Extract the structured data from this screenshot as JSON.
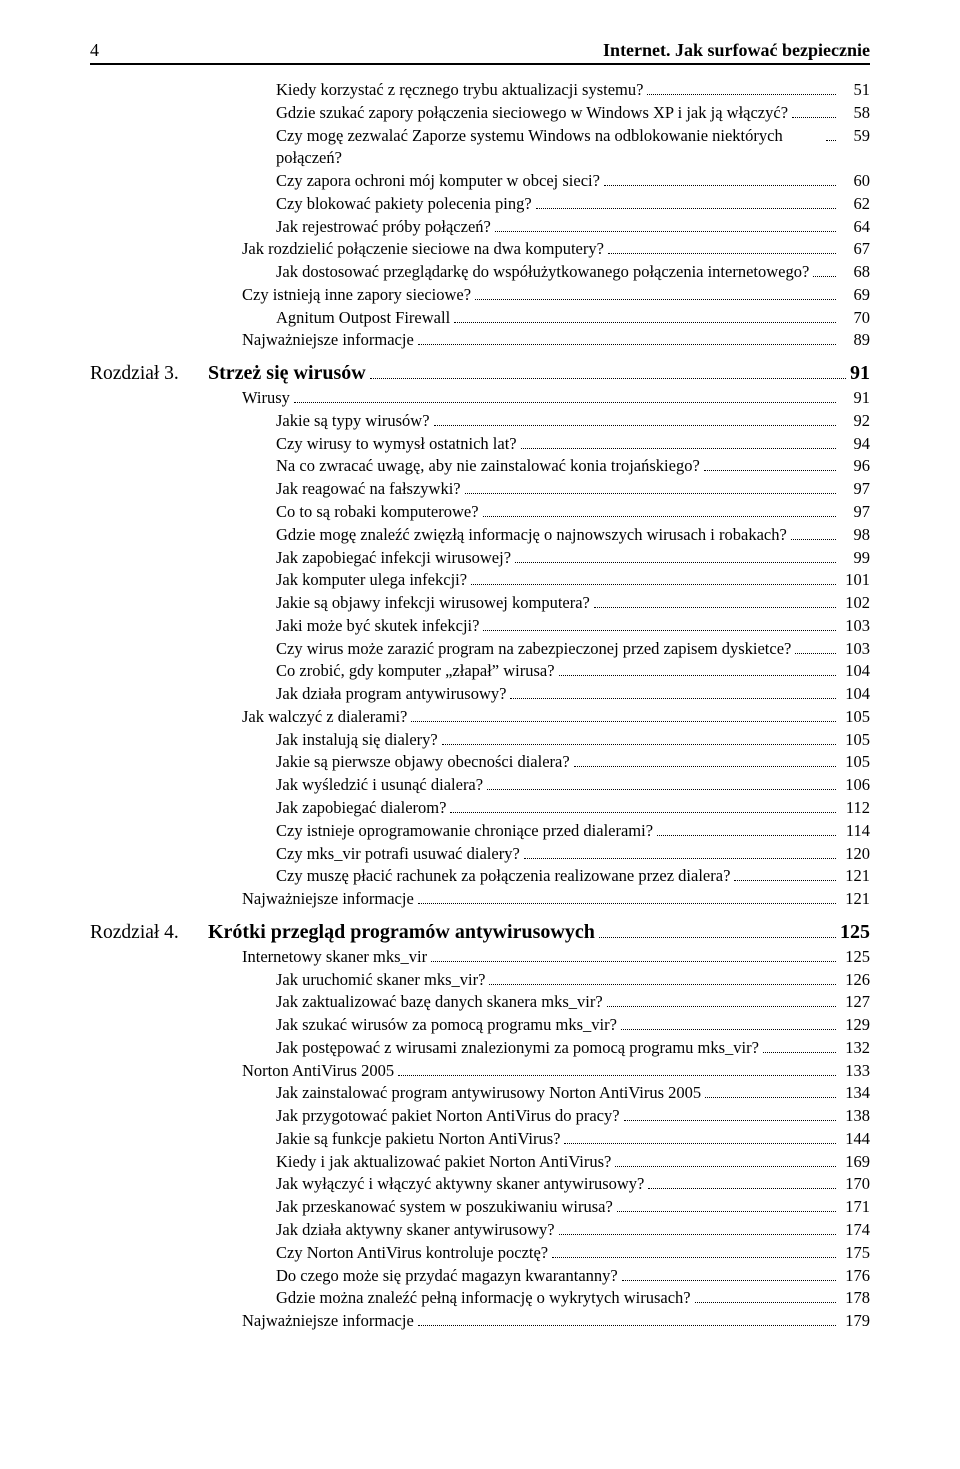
{
  "page_number": "4",
  "running_title": "Internet. Jak surfować bezpiecznie",
  "pre_lines": [
    {
      "lvl": 3,
      "label": "Kiedy korzystać z ręcznego trybu aktualizacji systemu?",
      "pg": "51"
    },
    {
      "lvl": 3,
      "label": "Gdzie szukać zapory połączenia sieciowego w Windows XP i jak ją włączyć?",
      "pg": "58"
    },
    {
      "lvl": 3,
      "label": "Czy mogę zezwalać Zaporze systemu Windows na odblokowanie niektórych połączeń?",
      "pg": "59"
    },
    {
      "lvl": 3,
      "label": "Czy zapora ochroni mój komputer w obcej sieci?",
      "pg": "60"
    },
    {
      "lvl": 3,
      "label": "Czy blokować pakiety polecenia ping?",
      "pg": "62"
    },
    {
      "lvl": 3,
      "label": "Jak rejestrować próby połączeń?",
      "pg": "64"
    },
    {
      "lvl": 2,
      "label": "Jak rozdzielić połączenie sieciowe na dwa komputery?",
      "pg": "67"
    },
    {
      "lvl": 3,
      "label": "Jak dostosować przeglądarkę do współużytkowanego połączenia internetowego?",
      "pg": "68"
    },
    {
      "lvl": 2,
      "label": "Czy istnieją inne zapory sieciowe?",
      "pg": "69"
    },
    {
      "lvl": 3,
      "label": "Agnitum Outpost Firewall",
      "pg": "70"
    },
    {
      "lvl": 2,
      "label": "Najważniejsze informacje",
      "pg": "89"
    }
  ],
  "chapter3": {
    "label": "Rozdział 3.",
    "title": "Strzeż się wirusów",
    "pg": "91",
    "lines": [
      {
        "lvl": 2,
        "label": "Wirusy",
        "pg": "91"
      },
      {
        "lvl": 3,
        "label": "Jakie są typy wirusów?",
        "pg": "92"
      },
      {
        "lvl": 3,
        "label": "Czy wirusy to wymysł ostatnich lat?",
        "pg": "94"
      },
      {
        "lvl": 3,
        "label": "Na co zwracać uwagę, aby nie zainstalować konia trojańskiego?",
        "pg": "96"
      },
      {
        "lvl": 3,
        "label": "Jak reagować na fałszywki?",
        "pg": "97"
      },
      {
        "lvl": 3,
        "label": "Co to są robaki komputerowe?",
        "pg": "97"
      },
      {
        "lvl": 3,
        "label": "Gdzie mogę znaleźć zwięzłą informację o najnowszych wirusach i robakach?",
        "pg": "98"
      },
      {
        "lvl": 3,
        "label": "Jak zapobiegać infekcji wirusowej?",
        "pg": "99"
      },
      {
        "lvl": 3,
        "label": "Jak komputer ulega infekcji?",
        "pg": "101"
      },
      {
        "lvl": 3,
        "label": "Jakie są objawy infekcji wirusowej komputera?",
        "pg": "102"
      },
      {
        "lvl": 3,
        "label": "Jaki może być skutek infekcji?",
        "pg": "103"
      },
      {
        "lvl": 3,
        "label": "Czy wirus może zarazić program na zabezpieczonej przed zapisem dyskietce?",
        "pg": "103"
      },
      {
        "lvl": 3,
        "label": "Co zrobić, gdy komputer „złapał” wirusa?",
        "pg": "104"
      },
      {
        "lvl": 3,
        "label": "Jak działa program antywirusowy?",
        "pg": "104"
      },
      {
        "lvl": 2,
        "label": "Jak walczyć z dialerami?",
        "pg": "105"
      },
      {
        "lvl": 3,
        "label": "Jak instalują się dialery?",
        "pg": "105"
      },
      {
        "lvl": 3,
        "label": "Jakie są pierwsze objawy obecności dialera?",
        "pg": "105"
      },
      {
        "lvl": 3,
        "label": "Jak wyśledzić i usunąć dialera?",
        "pg": "106"
      },
      {
        "lvl": 3,
        "label": "Jak zapobiegać dialerom?",
        "pg": "112"
      },
      {
        "lvl": 3,
        "label": "Czy istnieje oprogramowanie chroniące przed dialerami?",
        "pg": "114"
      },
      {
        "lvl": 3,
        "label": "Czy mks_vir potrafi usuwać dialery?",
        "pg": "120"
      },
      {
        "lvl": 3,
        "label": "Czy muszę płacić rachunek za połączenia realizowane przez dialera?",
        "pg": "121"
      },
      {
        "lvl": 2,
        "label": "Najważniejsze informacje",
        "pg": "121"
      }
    ]
  },
  "chapter4": {
    "label": "Rozdział 4.",
    "title": "Krótki przegląd programów antywirusowych",
    "pg": "125",
    "lines": [
      {
        "lvl": 2,
        "label": "Internetowy skaner mks_vir",
        "pg": "125"
      },
      {
        "lvl": 3,
        "label": "Jak uruchomić skaner mks_vir?",
        "pg": "126"
      },
      {
        "lvl": 3,
        "label": "Jak zaktualizować bazę danych skanera mks_vir?",
        "pg": "127"
      },
      {
        "lvl": 3,
        "label": "Jak szukać wirusów za pomocą programu mks_vir?",
        "pg": "129"
      },
      {
        "lvl": 3,
        "label": "Jak postępować z wirusami znalezionymi za pomocą programu mks_vir?",
        "pg": "132"
      },
      {
        "lvl": 2,
        "label": "Norton AntiVirus 2005",
        "pg": "133"
      },
      {
        "lvl": 3,
        "label": "Jak zainstalować program antywirusowy Norton AntiVirus 2005",
        "pg": "134"
      },
      {
        "lvl": 3,
        "label": "Jak przygotować pakiet Norton AntiVirus do pracy?",
        "pg": "138"
      },
      {
        "lvl": 3,
        "label": "Jakie są funkcje pakietu Norton AntiVirus?",
        "pg": "144"
      },
      {
        "lvl": 3,
        "label": "Kiedy i jak aktualizować pakiet Norton AntiVirus?",
        "pg": "169"
      },
      {
        "lvl": 3,
        "label": "Jak wyłączyć i włączyć aktywny skaner antywirusowy?",
        "pg": "170"
      },
      {
        "lvl": 3,
        "label": "Jak przeskanować system w poszukiwaniu wirusa?",
        "pg": "171"
      },
      {
        "lvl": 3,
        "label": "Jak działa aktywny skaner antywirusowy?",
        "pg": "174"
      },
      {
        "lvl": 3,
        "label": "Czy Norton AntiVirus kontroluje pocztę?",
        "pg": "175"
      },
      {
        "lvl": 3,
        "label": "Do czego może się przydać magazyn kwarantanny?",
        "pg": "176"
      },
      {
        "lvl": 3,
        "label": "Gdzie można znaleźć pełną informację o wykrytych wirusach?",
        "pg": "178"
      },
      {
        "lvl": 2,
        "label": "Najważniejsze informacje",
        "pg": "179"
      }
    ]
  }
}
